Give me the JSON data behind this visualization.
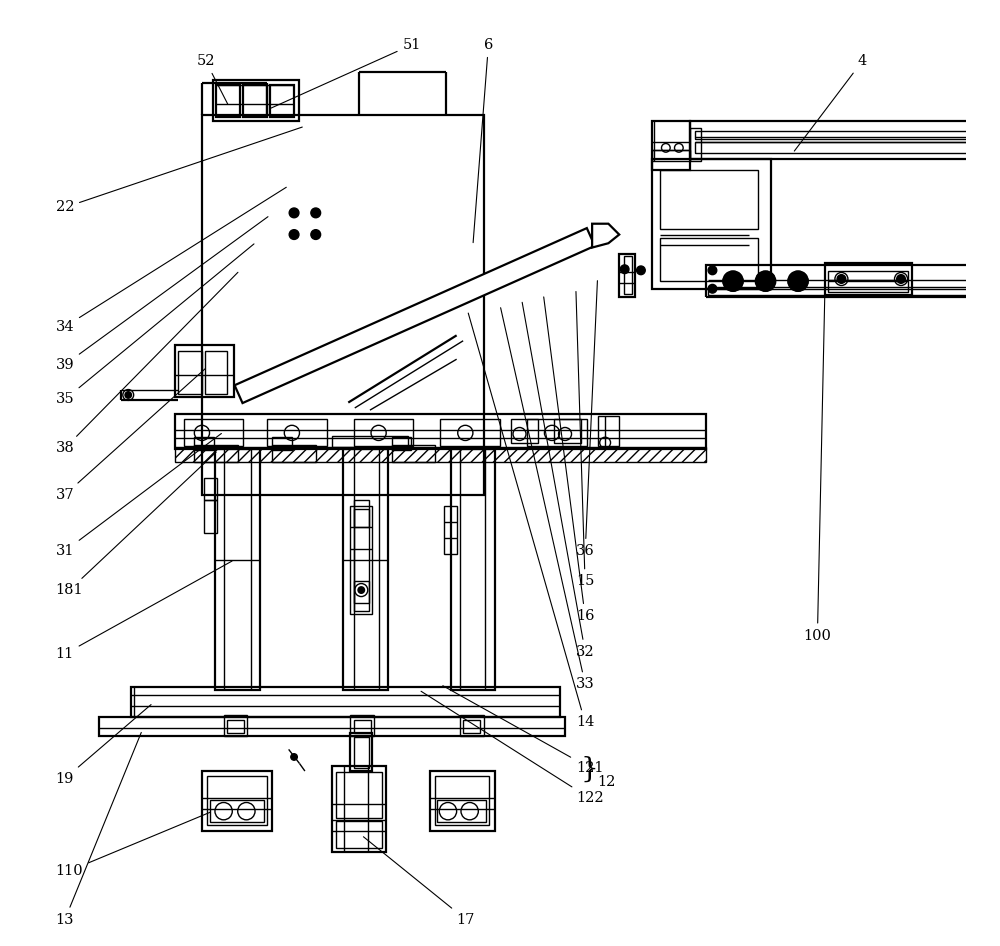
{
  "bg_color": "#ffffff",
  "lc": "#000000",
  "lw": 1.0,
  "lw2": 1.6,
  "lw3": 2.2,
  "fig_w": 10.0,
  "fig_h": 9.46,
  "font_size": 10.5
}
